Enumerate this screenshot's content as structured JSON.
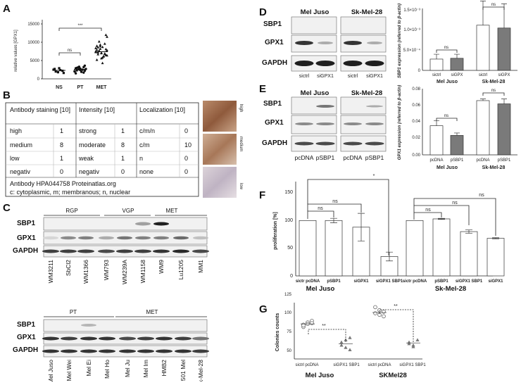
{
  "panels": {
    "A": "A",
    "B": "B",
    "C": "C",
    "D": "D",
    "E": "E",
    "F": "F",
    "G": "G"
  },
  "panelA": {
    "ylabel": "relative values [GPX1]",
    "yticks": [
      "0",
      "5000",
      "10000",
      "15000"
    ],
    "groups": [
      "NS",
      "PT",
      "MET"
    ],
    "sig": [
      "ns",
      "***"
    ]
  },
  "panelB": {
    "headers": [
      "Antibody staining [10]",
      "Intensity [10]",
      "Localization [10]"
    ],
    "rows": [
      [
        "high",
        "1",
        "strong",
        "1",
        "c/m/n",
        "0"
      ],
      [
        "medium",
        "8",
        "moderate",
        "8",
        "c/m",
        "10"
      ],
      [
        "low",
        "1",
        "weak",
        "1",
        "n",
        "0"
      ],
      [
        "negativ",
        "0",
        "negativ",
        "0",
        "none",
        "0"
      ]
    ],
    "footer1": "Antibody HPA044758   Proteinatlas.org",
    "footer2": "c: cytoplasmic, m; membranous; n, nuclear",
    "img_labels": [
      "high",
      "medium",
      "low"
    ]
  },
  "panelC": {
    "groups_top": [
      "RGP",
      "VGP",
      "MET"
    ],
    "rows_top": [
      "SBP1",
      "GPX1",
      "GAPDH"
    ],
    "lanes_top": [
      "WM3211",
      "SbCl2",
      "WM1366",
      "WM793",
      "WM239A",
      "WM1158",
      "WM9",
      "Lu1205",
      "MM1"
    ],
    "groups_bottom": [
      "PT",
      "MET"
    ],
    "rows_bottom": [
      "SBP1",
      "GPX1",
      "GAPDH"
    ],
    "lanes_bottom": [
      "Mel Juso",
      "Mel Wei",
      "Mel Ei",
      "Mel Ho",
      "Mel Ju",
      "Mel Im",
      "HMB2",
      "501 Mel",
      "Sk-Mel-28"
    ]
  },
  "panelD": {
    "cells": [
      "Mel Juso",
      "Sk-Mel-28"
    ],
    "rows": [
      "SBP1",
      "GPX1",
      "GAPDH"
    ],
    "lanes": [
      "sictrl",
      "siGPX1",
      "sictrl",
      "siGPX1"
    ],
    "ylabel": "SBP1 expression (referred to β-actin)",
    "yticks": [
      "1.5×10⁻³",
      "1.0×10⁻³",
      "5.0×10⁻⁴",
      "0"
    ],
    "bars": [
      "sictrl",
      "siGPX",
      "sictrl",
      "siGPX"
    ],
    "groups": [
      "Mel Juso",
      "Sk-Mel-28"
    ],
    "sig": [
      "ns",
      "ns"
    ]
  },
  "panelE": {
    "cells": [
      "Mel Juso",
      "Sk-Mel-28"
    ],
    "rows": [
      "SBP1",
      "GPX1",
      "GAPDH"
    ],
    "lanes": [
      "pcDNA",
      "pSBP1",
      "pcDNA",
      "pSBP1"
    ],
    "ylabel": "GPX1 expression (referred to β-actin)",
    "yticks": [
      "0.08",
      "0.06",
      "0.04",
      "0.02",
      "0.00"
    ],
    "bars": [
      "pcDNA",
      "pSBP1",
      "pcDNA",
      "pSBP1"
    ],
    "groups": [
      "Mel Juso",
      "Sk-Mel-28"
    ],
    "sig": [
      "ns",
      "ns"
    ]
  },
  "panelF": {
    "ylabel": "proliferation [%]",
    "yticks": [
      "0",
      "50",
      "100",
      "150"
    ],
    "bars": [
      "sictr pcDNA",
      "pSBP1",
      "siGPX1",
      "siGPX1 SBP1",
      "sictr pcDNA",
      "pSBP1",
      "siGPX1 SBP1",
      "siGPX1"
    ],
    "groups": [
      "Mel Juso",
      "Sk-Mel-28"
    ],
    "sig": [
      "ns",
      "ns",
      "*",
      "ns",
      "ns",
      "ns"
    ]
  },
  "panelG": {
    "ylabel": "Colonies counts",
    "yticks": [
      "50",
      "75",
      "100",
      "125"
    ],
    "groups": [
      "sictrl pcDNA",
      "siGPX1 SBP1",
      "sictrl pcDNA",
      "siGPX1 SBP1"
    ],
    "cells": [
      "Mel Juso",
      "SKMel28"
    ],
    "sig": [
      "**",
      "**"
    ]
  }
}
